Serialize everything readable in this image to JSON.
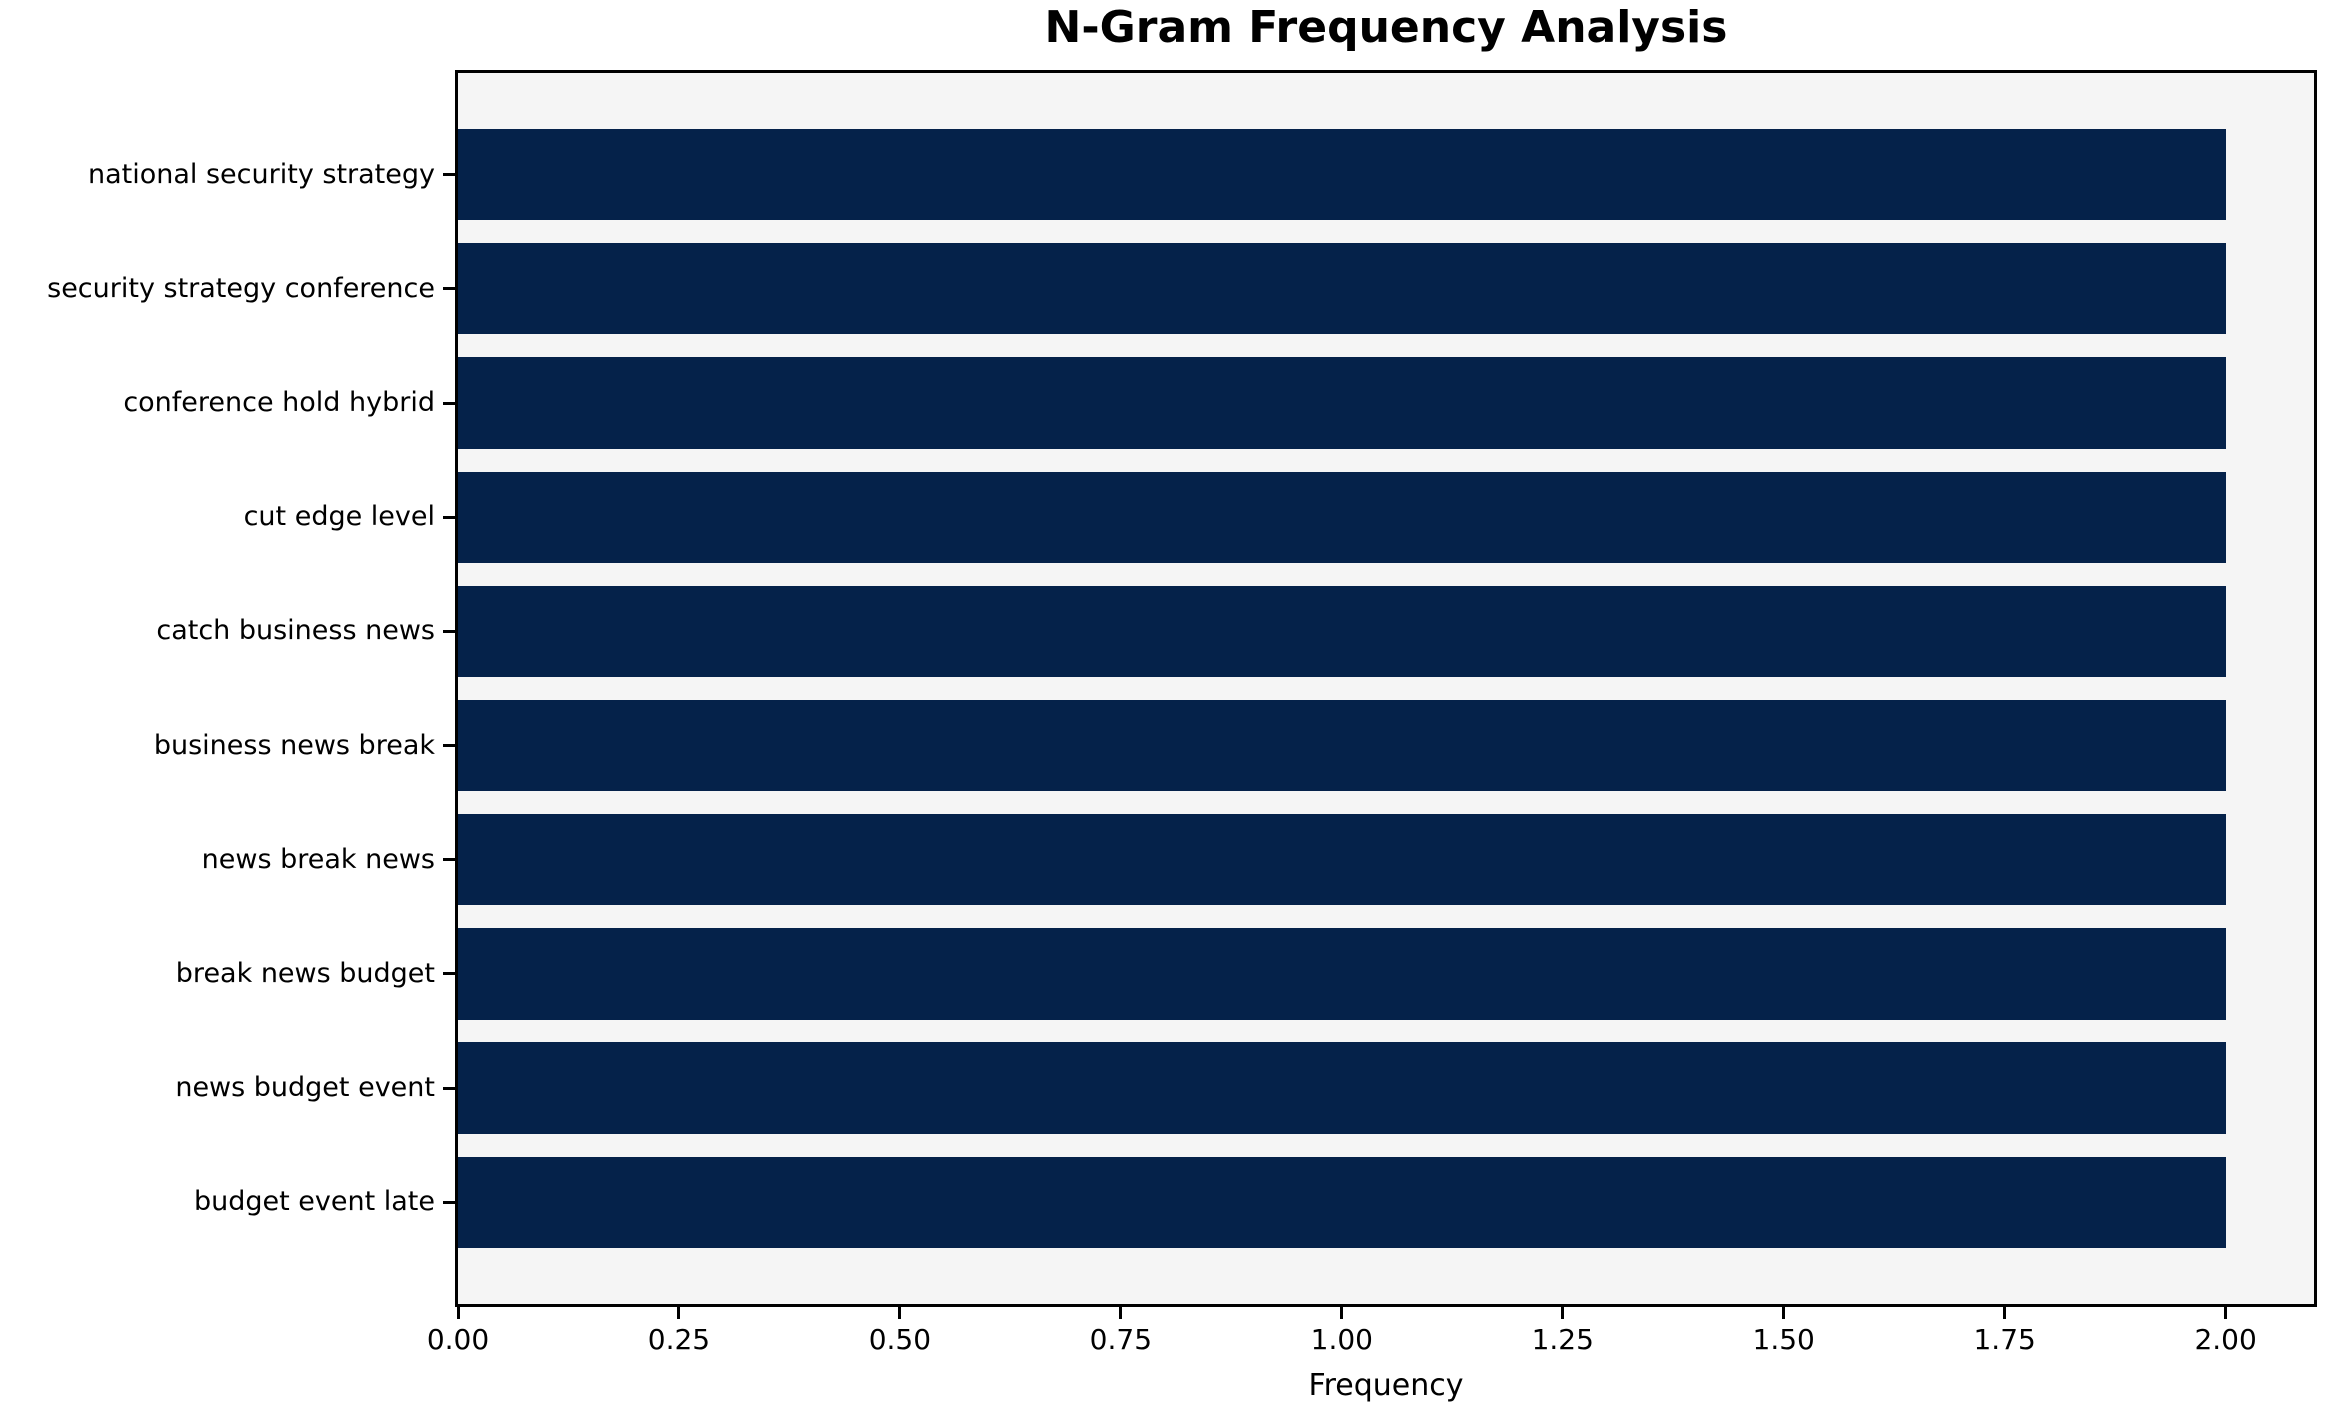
{
  "chart_data": {
    "type": "bar",
    "orientation": "horizontal",
    "title": "N-Gram Frequency Analysis",
    "xlabel": "Frequency",
    "ylabel": "",
    "categories": [
      "national security strategy",
      "security strategy conference",
      "conference hold hybrid",
      "cut edge level",
      "catch business news",
      "business news break",
      "news break news",
      "break news budget",
      "news budget event",
      "budget event late"
    ],
    "values": [
      2,
      2,
      2,
      2,
      2,
      2,
      2,
      2,
      2,
      2
    ],
    "xlim": [
      0,
      2.1
    ],
    "x_ticks": [
      {
        "value": 0.0,
        "label": "0.00"
      },
      {
        "value": 0.25,
        "label": "0.25"
      },
      {
        "value": 0.5,
        "label": "0.50"
      },
      {
        "value": 0.75,
        "label": "0.75"
      },
      {
        "value": 1.0,
        "label": "1.00"
      },
      {
        "value": 1.25,
        "label": "1.25"
      },
      {
        "value": 1.5,
        "label": "1.50"
      },
      {
        "value": 1.75,
        "label": "1.75"
      },
      {
        "value": 2.0,
        "label": "2.00"
      }
    ],
    "bar_color": "#05224a",
    "plot_background": "#f5f5f5",
    "axis_color": "#000000",
    "grid": false,
    "legend_position": "none"
  }
}
